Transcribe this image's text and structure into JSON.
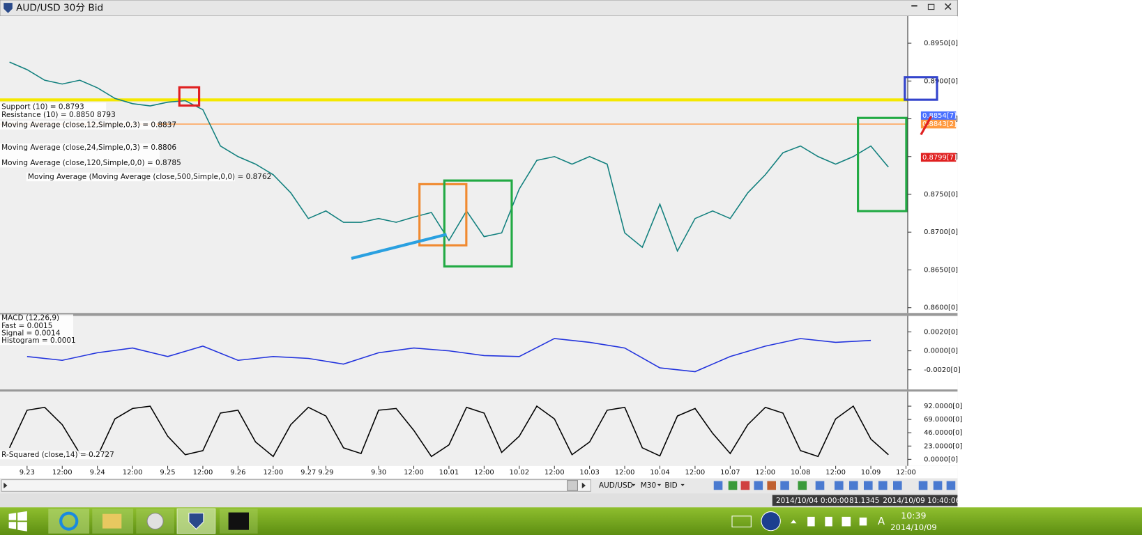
{
  "window": {
    "title": "AUD/USD 30分 Bid"
  },
  "price_panel": {
    "type": "line",
    "indicator_labels": [
      "Support (10) = 0.8793",
      "Resistance (10) = 0.8850 8793",
      "Moving Average (close,12,Simple,0,3) = 0.8837",
      "Moving Average (close,24,Simple,0,3) = 0.8806",
      "Moving Average (close,120,Simple,0,0) = 0.8785",
      "Moving Average (Moving Average (close,500,Simple,0,0) = 0.8762"
    ],
    "xlim": [
      -0.77,
      25.05
    ],
    "xticks": [
      {
        "value": 0,
        "label": "9.23"
      },
      {
        "value": 1,
        "label": "12:00"
      },
      {
        "value": 2,
        "label": "9.24"
      },
      {
        "value": 3,
        "label": "12:00"
      },
      {
        "value": 4,
        "label": "9.25"
      },
      {
        "value": 5,
        "label": "12:00"
      },
      {
        "value": 6,
        "label": "9.26"
      },
      {
        "value": 7,
        "label": "12:00"
      },
      {
        "value": 8,
        "label": "9.27"
      },
      {
        "value": 8.5,
        "label": "9.29"
      },
      {
        "value": 10,
        "label": "9.30"
      },
      {
        "value": 11,
        "label": "12:00"
      },
      {
        "value": 12,
        "label": "10.01"
      },
      {
        "value": 13,
        "label": "12:00"
      },
      {
        "value": 14,
        "label": "10.02"
      },
      {
        "value": 15,
        "label": "12:00"
      },
      {
        "value": 16,
        "label": "10.03"
      },
      {
        "value": 17,
        "label": "12:00"
      },
      {
        "value": 18,
        "label": "10.04"
      },
      {
        "value": 19,
        "label": "12:00"
      },
      {
        "value": 20,
        "label": "10.07"
      },
      {
        "value": 21,
        "label": "12:00"
      },
      {
        "value": 22,
        "label": "10.08"
      },
      {
        "value": 23,
        "label": "12:00"
      },
      {
        "value": 24,
        "label": "10.09"
      },
      {
        "value": 25,
        "label": "12:00"
      }
    ],
    "ylim": [
      0.8593,
      0.8986
    ],
    "yticks": [
      {
        "value": 0.895,
        "label": "0.8950[0]"
      },
      {
        "value": 0.89,
        "label": "0.8900[0]"
      },
      {
        "value": 0.885,
        "label": "0.8850[0]"
      },
      {
        "value": 0.88,
        "label": "0.8800[0]"
      },
      {
        "value": 0.875,
        "label": "0.8750[0]"
      },
      {
        "value": 0.87,
        "label": "0.8700[0]"
      },
      {
        "value": 0.865,
        "label": "0.8650[0]"
      },
      {
        "value": 0.86,
        "label": "0.8600[0]"
      }
    ],
    "series": [
      {
        "color": "#12807e",
        "x": [
          -0.5,
          0,
          0.5,
          1,
          1.5,
          2,
          2.5,
          3,
          3.5,
          4,
          4.5,
          5,
          5.5,
          6,
          6.5,
          7,
          7.5,
          8,
          8.5,
          9,
          9.5,
          10,
          10.5,
          11,
          11.5,
          12,
          12.5,
          13,
          13.5,
          14,
          14.5,
          15,
          15.5,
          16,
          16.5,
          17,
          17.5,
          18,
          18.5,
          19,
          19.5,
          20,
          20.5,
          21,
          21.5,
          22,
          22.5,
          23,
          23.5,
          24,
          24.5
        ],
        "values": [
          0.8925,
          0.8915,
          0.8901,
          0.8896,
          0.8901,
          0.8891,
          0.8877,
          0.887,
          0.8867,
          0.8872,
          0.8874,
          0.8862,
          0.8814,
          0.88,
          0.879,
          0.8776,
          0.8752,
          0.8718,
          0.8728,
          0.8713,
          0.8713,
          0.8718,
          0.8713,
          0.872,
          0.8726,
          0.8689,
          0.8728,
          0.8694,
          0.8699,
          0.8757,
          0.8795,
          0.88,
          0.879,
          0.88,
          0.879,
          0.8699,
          0.868,
          0.8737,
          0.8675,
          0.8718,
          0.8728,
          0.8718,
          0.8752,
          0.8776,
          0.8805,
          0.8814,
          0.88,
          0.879,
          0.88,
          0.8814,
          0.8786
        ]
      }
    ],
    "levels": [
      {
        "value": 0.8875,
        "color": "#f5e800"
      },
      {
        "value": 0.8843,
        "color": "#ffa050"
      }
    ],
    "price_markers": [
      {
        "value": 0.8854,
        "label": "0.8854[7]",
        "color": "#4a70ff"
      },
      {
        "value": 0.8843,
        "label": "0.8843[2]",
        "color": "#ff9a40"
      },
      {
        "value": 0.8799,
        "label": "0.8799[7]",
        "color": "#e02020"
      }
    ]
  },
  "macd_panel": {
    "type": "line",
    "labels": [
      "MACD (12,26,9)",
      "Fast = 0.0015",
      "Signal = 0.0014",
      "Histogram = 0.0001"
    ],
    "ylim": [
      -0.00408,
      0.00369
    ],
    "yticks": [
      {
        "value": 0.002,
        "label": "0.0020[0]"
      },
      {
        "value": 0,
        "label": "0.0000[0]"
      },
      {
        "value": -0.002,
        "label": "-0.0020[0]"
      }
    ],
    "series": [
      {
        "color": "#2233dd",
        "x": [
          0,
          1,
          2,
          3,
          4,
          5,
          6,
          7,
          8,
          9,
          10,
          11,
          12,
          13,
          14,
          15,
          16,
          17,
          18,
          19,
          20,
          21,
          22,
          23,
          24
        ],
        "values": [
          -0.0006,
          -0.001,
          -0.0002,
          0.0003,
          -0.0006,
          0.0005,
          -0.001,
          -0.0006,
          -0.0008,
          -0.0014,
          -0.0002,
          0.0003,
          0,
          -0.0005,
          -0.0006,
          0.0013,
          0.0009,
          0.0003,
          -0.0018,
          -0.0022,
          -0.0006,
          0.0005,
          0.0013,
          0.0009,
          0.0011
        ]
      }
    ]
  },
  "rsq_panel": {
    "type": "line",
    "labels": [
      "R-Squared (close,14) = 0.2727"
    ],
    "ylim": [
      -11.3,
      117.2
    ],
    "yticks": [
      {
        "value": 92,
        "label": "92.0000[0]"
      },
      {
        "value": 69,
        "label": "69.0000[0]"
      },
      {
        "value": 46,
        "label": "46.0000[0]"
      },
      {
        "value": 23,
        "label": "23.0000[0]"
      },
      {
        "value": 0,
        "label": "0.0000[0]"
      }
    ],
    "series": [
      {
        "color": "#000000",
        "x": [
          -0.5,
          0,
          0.5,
          1,
          1.5,
          2,
          2.5,
          3,
          3.5,
          4,
          4.5,
          5,
          5.5,
          6,
          6.5,
          7,
          7.5,
          8,
          8.5,
          9,
          9.5,
          10,
          10.5,
          11,
          11.5,
          12,
          12.5,
          13,
          13.5,
          14,
          14.5,
          15,
          15.5,
          16,
          16.5,
          17,
          17.5,
          18,
          18.5,
          19,
          19.5,
          20,
          20.5,
          21,
          21.5,
          22,
          22.5,
          23,
          23.5,
          24,
          24.5
        ],
        "values": [
          20,
          85,
          90,
          60,
          10,
          5,
          70,
          88,
          92,
          40,
          8,
          15,
          80,
          85,
          30,
          5,
          60,
          90,
          75,
          20,
          10,
          85,
          88,
          50,
          5,
          25,
          90,
          80,
          12,
          40,
          92,
          70,
          8,
          30,
          85,
          90,
          20,
          6,
          75,
          88,
          45,
          10,
          60,
          90,
          80,
          15,
          5,
          70,
          92,
          35,
          8
        ]
      }
    ]
  },
  "toolbar": {
    "symbol": "AUD/USD",
    "timeframe": "M30",
    "side": "BID"
  },
  "status_bar": {
    "start": "2014/10/04 0:00:00",
    "value": "81.1345",
    "time": "2014/10/09 10:40:06"
  },
  "taskbar": {
    "time": "10:39",
    "date": "2014/10/09"
  }
}
